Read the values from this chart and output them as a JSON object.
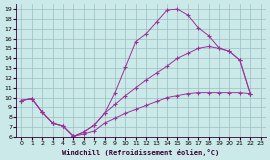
{
  "xlabel": "Windchill (Refroidissement éolien,°C)",
  "xlim": [
    -0.5,
    23.5
  ],
  "ylim": [
    6,
    19.5
  ],
  "xticks": [
    0,
    1,
    2,
    3,
    4,
    5,
    6,
    7,
    8,
    9,
    10,
    11,
    12,
    13,
    14,
    15,
    16,
    17,
    18,
    19,
    20,
    21,
    22,
    23
  ],
  "yticks": [
    6,
    7,
    8,
    9,
    10,
    11,
    12,
    13,
    14,
    15,
    16,
    17,
    18,
    19
  ],
  "bg_color": "#cce9e9",
  "grid_color": "#9bbfbf",
  "line_color": "#993399",
  "curve1_x": [
    0,
    1,
    2,
    3,
    4,
    5,
    6,
    7,
    8,
    9,
    10,
    11,
    12,
    13,
    14,
    15,
    16,
    17,
    18,
    19,
    20,
    21,
    22
  ],
  "curve1_y": [
    9.7,
    9.9,
    8.5,
    7.4,
    7.1,
    6.05,
    6.5,
    7.2,
    8.4,
    10.5,
    13.1,
    15.7,
    16.5,
    17.7,
    18.9,
    19.0,
    18.4,
    17.1,
    16.3,
    15.05,
    14.7,
    13.8,
    10.4
  ],
  "curve2_x": [
    0,
    1,
    2,
    3,
    4,
    5,
    6,
    7,
    8,
    9,
    10,
    11,
    12,
    13,
    14,
    15,
    16,
    17,
    18,
    19,
    20,
    21,
    22
  ],
  "curve2_y": [
    9.7,
    9.9,
    8.5,
    7.4,
    7.1,
    6.05,
    6.5,
    7.2,
    8.4,
    9.3,
    10.2,
    11.0,
    11.8,
    12.5,
    13.2,
    14.0,
    14.5,
    15.0,
    15.2,
    15.0,
    14.7,
    13.8,
    10.4
  ],
  "curve3_x": [
    0,
    1,
    2,
    3,
    4,
    5,
    6,
    7,
    8,
    9,
    10,
    11,
    12,
    13,
    14,
    15,
    16,
    17,
    18,
    19,
    20,
    21,
    22
  ],
  "curve3_y": [
    9.7,
    9.9,
    8.5,
    7.4,
    7.1,
    6.05,
    6.3,
    6.6,
    7.4,
    7.9,
    8.4,
    8.8,
    9.2,
    9.6,
    10.0,
    10.2,
    10.4,
    10.5,
    10.5,
    10.5,
    10.5,
    10.5,
    10.4
  ]
}
